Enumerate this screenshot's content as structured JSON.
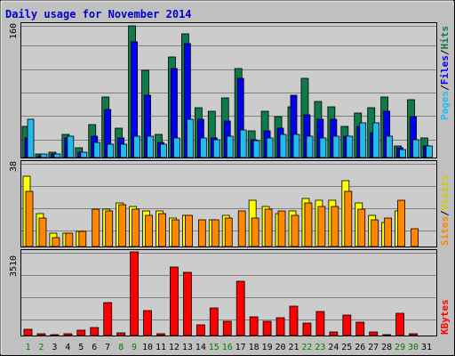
{
  "colors": {
    "background": "#c0c0c0",
    "panel": "#cccccc",
    "title_text": "#0000cc",
    "grid": "#808080",
    "hits": "#0f7a4a",
    "files": "#0000ee",
    "pages": "#22bbee",
    "visits": "#ffff00",
    "sites": "#ff8800",
    "kbytes": "#ff0000",
    "weekend_label": "#008000",
    "weekday_label": "#000000"
  },
  "chart_data": {
    "type": "bar",
    "title": "Daily usage for November 2014",
    "x_labels": [
      "1",
      "2",
      "3",
      "4",
      "5",
      "6",
      "7",
      "8",
      "9",
      "10",
      "11",
      "12",
      "13",
      "14",
      "15",
      "16",
      "17",
      "18",
      "19",
      "20",
      "21",
      "22",
      "23",
      "24",
      "25",
      "26",
      "27",
      "28",
      "29",
      "30",
      "31"
    ],
    "weekend_days": [
      1,
      2,
      8,
      9,
      15,
      16,
      22,
      23,
      29,
      30
    ],
    "panels": [
      {
        "id": "usage",
        "ymax_label": "160",
        "ylim": [
          0,
          160
        ],
        "legend": [
          "Pages",
          "/",
          "Files",
          "/",
          "Hits"
        ],
        "series": [
          {
            "name": "Hits",
            "values": [
              38,
              4,
              6,
              28,
              12,
              40,
              74,
              36,
              160,
              106,
              28,
              122,
              150,
              60,
              56,
              72,
              108,
              32,
              56,
              50,
              62,
              96,
              68,
              62,
              38,
              54,
              60,
              74,
              14,
              70,
              24
            ]
          },
          {
            "name": "Files",
            "values": [
              24,
              2,
              4,
              24,
              6,
              26,
              58,
              24,
              140,
              76,
              18,
              108,
              138,
              46,
              24,
              44,
              96,
              22,
              32,
              36,
              76,
              52,
              46,
              46,
              26,
              38,
              30,
              56,
              12,
              50,
              14
            ]
          },
          {
            "name": "Pages",
            "values": [
              46,
              4,
              4,
              26,
              6,
              18,
              16,
              16,
              26,
              26,
              16,
              24,
              46,
              24,
              22,
              26,
              34,
              20,
              24,
              28,
              28,
              26,
              24,
              26,
              26,
              42,
              42,
              26,
              10,
              22,
              14
            ]
          }
        ]
      },
      {
        "id": "visits",
        "ymax_label": "38",
        "ylim": [
          0,
          38
        ],
        "legend": [
          "Sites",
          "/",
          "Visits"
        ],
        "series": [
          {
            "name": "Visits",
            "values": [
              32,
              15,
              6,
              6,
              7,
              0,
              17,
              20,
              18,
              16,
              16,
              13,
              14,
              0,
              12,
              14,
              0,
              21,
              18,
              15,
              16,
              22,
              21,
              21,
              30,
              20,
              14,
              11,
              16,
              0,
              0
            ]
          },
          {
            "name": "Sites",
            "values": [
              25,
              13,
              4,
              6,
              7,
              17,
              16,
              19,
              17,
              14,
              15,
              12,
              14,
              12,
              12,
              13,
              16,
              13,
              17,
              16,
              14,
              20,
              18,
              18,
              25,
              17,
              12,
              13,
              21,
              8,
              0
            ]
          }
        ]
      },
      {
        "id": "kbytes",
        "ymax_label": "3510",
        "ylim": [
          0,
          3510
        ],
        "legend": [
          "KBytes"
        ],
        "series": [
          {
            "name": "KBytes",
            "values": [
              280,
              60,
              40,
              80,
              230,
              320,
              1380,
              110,
              3510,
              1030,
              60,
              2890,
              2660,
              440,
              1160,
              600,
              2280,
              780,
              580,
              760,
              1220,
              530,
              1000,
              140,
              860,
              560,
              150,
              40,
              950,
              90,
              0
            ]
          }
        ]
      }
    ]
  }
}
